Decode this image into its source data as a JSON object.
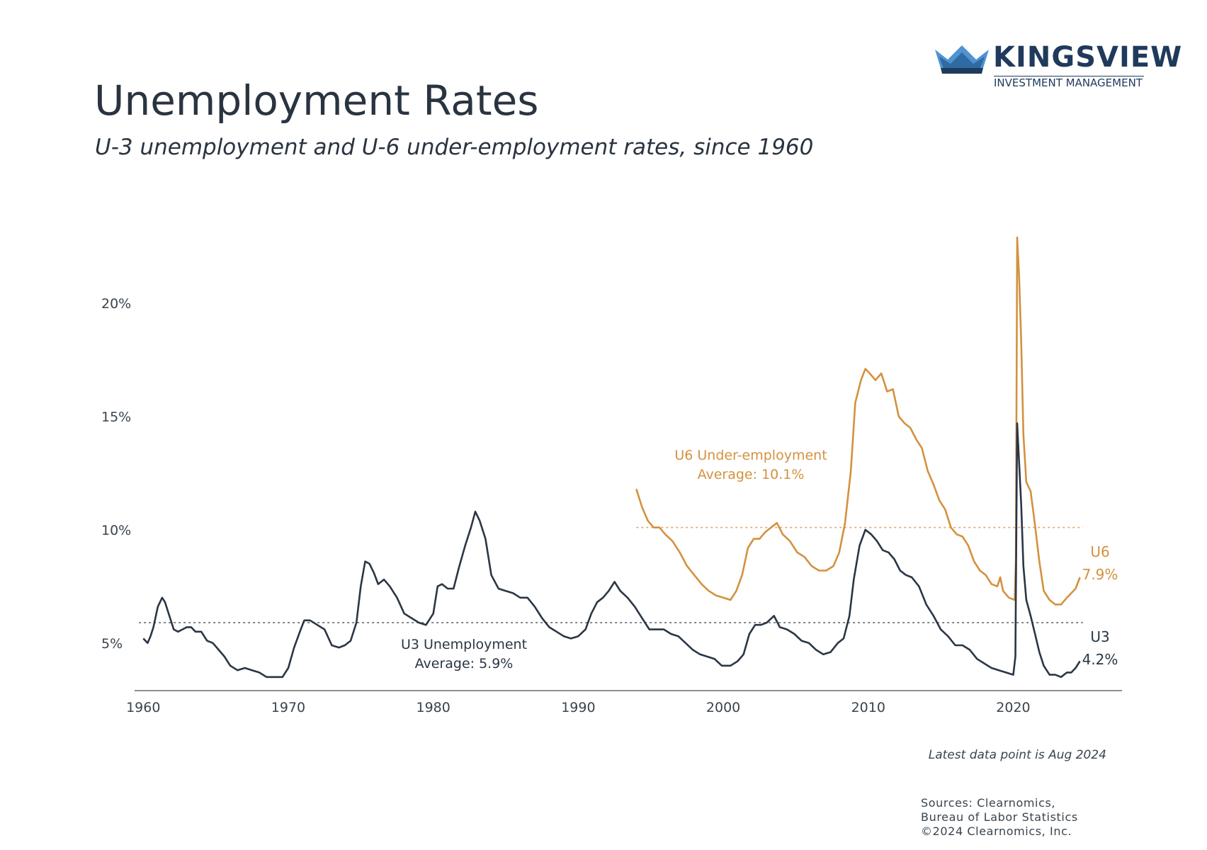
{
  "header": {
    "title": "Unemployment Rates",
    "subtitle": "U-3 unemployment and U-6 under-employment rates, since 1960"
  },
  "logo": {
    "name": "KINGSVIEW",
    "tagline": "INVESTMENT MANAGEMENT",
    "colors": {
      "dark": "#1f3a5c",
      "mid": "#2f6aa3",
      "light": "#4f93d1"
    }
  },
  "footer": {
    "note": "Latest data point is Aug 2024",
    "sources": [
      "Sources: Clearnomics,",
      "Bureau of Labor Statistics",
      "©2024 Clearnomics, Inc."
    ]
  },
  "chart_data": {
    "type": "line",
    "title": "Unemployment Rates",
    "xlabel": "",
    "ylabel": "",
    "xlim": [
      1959.4,
      2027.5
    ],
    "ylim": [
      2.9,
      24
    ],
    "xticks": [
      1960,
      1970,
      1980,
      1990,
      2000,
      2010,
      2020
    ],
    "xtick_labels": [
      "1960",
      "1970",
      "1980",
      "1990",
      "2000",
      "2010",
      "2020"
    ],
    "yticks": [
      5,
      10,
      15,
      20
    ],
    "ytick_labels": [
      "5%",
      "10%",
      "15%",
      "20%"
    ],
    "grid": false,
    "colors": {
      "u3": "#2a3645",
      "u6": "#d4913f",
      "axis": "#6b6b6b"
    },
    "series": [
      {
        "name": "U3",
        "color": "#2a3645",
        "average": 5.9,
        "annotation": [
          "U3 Unemployment",
          "Average: 5.9%"
        ],
        "end_label": [
          "U3",
          "4.2%"
        ],
        "points": [
          [
            1960.0,
            5.2
          ],
          [
            1960.3,
            5.0
          ],
          [
            1960.5,
            5.3
          ],
          [
            1960.7,
            5.7
          ],
          [
            1961.0,
            6.6
          ],
          [
            1961.3,
            7.0
          ],
          [
            1961.5,
            6.8
          ],
          [
            1961.8,
            6.2
          ],
          [
            1962.1,
            5.6
          ],
          [
            1962.4,
            5.5
          ],
          [
            1962.7,
            5.6
          ],
          [
            1963.0,
            5.7
          ],
          [
            1963.3,
            5.7
          ],
          [
            1963.6,
            5.5
          ],
          [
            1964.0,
            5.5
          ],
          [
            1964.4,
            5.1
          ],
          [
            1964.8,
            5.0
          ],
          [
            1965.2,
            4.7
          ],
          [
            1965.6,
            4.4
          ],
          [
            1966.0,
            4.0
          ],
          [
            1966.5,
            3.8
          ],
          [
            1967.0,
            3.9
          ],
          [
            1967.5,
            3.8
          ],
          [
            1968.0,
            3.7
          ],
          [
            1968.5,
            3.5
          ],
          [
            1969.0,
            3.5
          ],
          [
            1969.6,
            3.5
          ],
          [
            1970.0,
            3.9
          ],
          [
            1970.4,
            4.8
          ],
          [
            1970.8,
            5.5
          ],
          [
            1971.1,
            6.0
          ],
          [
            1971.5,
            6.0
          ],
          [
            1972.0,
            5.8
          ],
          [
            1972.5,
            5.6
          ],
          [
            1973.0,
            4.9
          ],
          [
            1973.5,
            4.8
          ],
          [
            1973.9,
            4.9
          ],
          [
            1974.3,
            5.1
          ],
          [
            1974.7,
            5.9
          ],
          [
            1975.0,
            7.5
          ],
          [
            1975.3,
            8.6
          ],
          [
            1975.6,
            8.5
          ],
          [
            1975.9,
            8.1
          ],
          [
            1976.2,
            7.6
          ],
          [
            1976.6,
            7.8
          ],
          [
            1977.0,
            7.5
          ],
          [
            1977.5,
            7.0
          ],
          [
            1978.0,
            6.3
          ],
          [
            1978.5,
            6.1
          ],
          [
            1979.0,
            5.9
          ],
          [
            1979.5,
            5.8
          ],
          [
            1980.0,
            6.3
          ],
          [
            1980.3,
            7.5
          ],
          [
            1980.6,
            7.6
          ],
          [
            1981.0,
            7.4
          ],
          [
            1981.4,
            7.4
          ],
          [
            1981.8,
            8.4
          ],
          [
            1982.2,
            9.3
          ],
          [
            1982.6,
            10.1
          ],
          [
            1982.9,
            10.8
          ],
          [
            1983.2,
            10.4
          ],
          [
            1983.6,
            9.6
          ],
          [
            1984.0,
            8.0
          ],
          [
            1984.5,
            7.4
          ],
          [
            1985.0,
            7.3
          ],
          [
            1985.5,
            7.2
          ],
          [
            1986.0,
            7.0
          ],
          [
            1986.5,
            7.0
          ],
          [
            1987.0,
            6.6
          ],
          [
            1987.5,
            6.1
          ],
          [
            1988.0,
            5.7
          ],
          [
            1988.5,
            5.5
          ],
          [
            1989.0,
            5.3
          ],
          [
            1989.5,
            5.2
          ],
          [
            1990.0,
            5.3
          ],
          [
            1990.5,
            5.6
          ],
          [
            1990.9,
            6.3
          ],
          [
            1991.3,
            6.8
          ],
          [
            1991.7,
            7.0
          ],
          [
            1992.1,
            7.3
          ],
          [
            1992.5,
            7.7
          ],
          [
            1992.9,
            7.3
          ],
          [
            1993.4,
            7.0
          ],
          [
            1993.9,
            6.6
          ],
          [
            1994.4,
            6.1
          ],
          [
            1994.9,
            5.6
          ],
          [
            1995.4,
            5.6
          ],
          [
            1995.9,
            5.6
          ],
          [
            1996.4,
            5.4
          ],
          [
            1996.9,
            5.3
          ],
          [
            1997.4,
            5.0
          ],
          [
            1997.9,
            4.7
          ],
          [
            1998.4,
            4.5
          ],
          [
            1998.9,
            4.4
          ],
          [
            1999.4,
            4.3
          ],
          [
            1999.9,
            4.0
          ],
          [
            2000.5,
            4.0
          ],
          [
            2001.0,
            4.2
          ],
          [
            2001.4,
            4.5
          ],
          [
            2001.8,
            5.4
          ],
          [
            2002.2,
            5.8
          ],
          [
            2002.6,
            5.8
          ],
          [
            2003.0,
            5.9
          ],
          [
            2003.5,
            6.2
          ],
          [
            2003.9,
            5.7
          ],
          [
            2004.4,
            5.6
          ],
          [
            2004.9,
            5.4
          ],
          [
            2005.4,
            5.1
          ],
          [
            2005.9,
            5.0
          ],
          [
            2006.4,
            4.7
          ],
          [
            2006.9,
            4.5
          ],
          [
            2007.4,
            4.6
          ],
          [
            2007.9,
            5.0
          ],
          [
            2008.3,
            5.2
          ],
          [
            2008.7,
            6.2
          ],
          [
            2009.0,
            7.8
          ],
          [
            2009.4,
            9.3
          ],
          [
            2009.8,
            10.0
          ],
          [
            2010.2,
            9.8
          ],
          [
            2010.6,
            9.5
          ],
          [
            2011.0,
            9.1
          ],
          [
            2011.4,
            9.0
          ],
          [
            2011.8,
            8.7
          ],
          [
            2012.2,
            8.2
          ],
          [
            2012.6,
            8.0
          ],
          [
            2013.0,
            7.9
          ],
          [
            2013.5,
            7.5
          ],
          [
            2014.0,
            6.7
          ],
          [
            2014.5,
            6.2
          ],
          [
            2015.0,
            5.6
          ],
          [
            2015.5,
            5.3
          ],
          [
            2016.0,
            4.9
          ],
          [
            2016.5,
            4.9
          ],
          [
            2017.0,
            4.7
          ],
          [
            2017.5,
            4.3
          ],
          [
            2018.0,
            4.1
          ],
          [
            2018.5,
            3.9
          ],
          [
            2019.0,
            3.8
          ],
          [
            2019.5,
            3.7
          ],
          [
            2020.0,
            3.6
          ],
          [
            2020.15,
            4.4
          ],
          [
            2020.27,
            14.7
          ],
          [
            2020.4,
            13.0
          ],
          [
            2020.55,
            11.1
          ],
          [
            2020.7,
            8.4
          ],
          [
            2020.9,
            6.9
          ],
          [
            2021.2,
            6.2
          ],
          [
            2021.5,
            5.4
          ],
          [
            2021.8,
            4.6
          ],
          [
            2022.1,
            4.0
          ],
          [
            2022.5,
            3.6
          ],
          [
            2022.9,
            3.6
          ],
          [
            2023.3,
            3.5
          ],
          [
            2023.7,
            3.7
          ],
          [
            2024.0,
            3.7
          ],
          [
            2024.3,
            3.9
          ],
          [
            2024.6,
            4.2
          ]
        ]
      },
      {
        "name": "U6",
        "color": "#d4913f",
        "average": 10.1,
        "annotation": [
          "U6 Under-employment",
          "Average: 10.1%"
        ],
        "end_label": [
          "U6",
          "7.9%"
        ],
        "points": [
          [
            1994.0,
            11.8
          ],
          [
            1994.4,
            11.0
          ],
          [
            1994.8,
            10.4
          ],
          [
            1995.2,
            10.1
          ],
          [
            1995.6,
            10.1
          ],
          [
            1996.0,
            9.8
          ],
          [
            1996.5,
            9.5
          ],
          [
            1997.0,
            9.0
          ],
          [
            1997.5,
            8.4
          ],
          [
            1998.0,
            8.0
          ],
          [
            1998.5,
            7.6
          ],
          [
            1999.0,
            7.3
          ],
          [
            1999.5,
            7.1
          ],
          [
            2000.0,
            7.0
          ],
          [
            2000.5,
            6.9
          ],
          [
            2000.9,
            7.3
          ],
          [
            2001.3,
            8.0
          ],
          [
            2001.7,
            9.2
          ],
          [
            2002.1,
            9.6
          ],
          [
            2002.5,
            9.6
          ],
          [
            2002.9,
            9.9
          ],
          [
            2003.3,
            10.1
          ],
          [
            2003.7,
            10.3
          ],
          [
            2004.1,
            9.8
          ],
          [
            2004.6,
            9.5
          ],
          [
            2005.1,
            9.0
          ],
          [
            2005.6,
            8.8
          ],
          [
            2006.1,
            8.4
          ],
          [
            2006.6,
            8.2
          ],
          [
            2007.1,
            8.2
          ],
          [
            2007.6,
            8.4
          ],
          [
            2008.0,
            9.0
          ],
          [
            2008.4,
            10.3
          ],
          [
            2008.8,
            12.6
          ],
          [
            2009.1,
            15.6
          ],
          [
            2009.5,
            16.6
          ],
          [
            2009.8,
            17.1
          ],
          [
            2010.1,
            16.9
          ],
          [
            2010.5,
            16.6
          ],
          [
            2010.9,
            16.9
          ],
          [
            2011.3,
            16.1
          ],
          [
            2011.7,
            16.2
          ],
          [
            2012.1,
            15.0
          ],
          [
            2012.5,
            14.7
          ],
          [
            2012.9,
            14.5
          ],
          [
            2013.3,
            14.0
          ],
          [
            2013.7,
            13.6
          ],
          [
            2014.1,
            12.6
          ],
          [
            2014.5,
            12.0
          ],
          [
            2014.9,
            11.3
          ],
          [
            2015.3,
            10.9
          ],
          [
            2015.7,
            10.1
          ],
          [
            2016.1,
            9.8
          ],
          [
            2016.5,
            9.7
          ],
          [
            2016.9,
            9.3
          ],
          [
            2017.3,
            8.6
          ],
          [
            2017.7,
            8.2
          ],
          [
            2018.1,
            8.0
          ],
          [
            2018.5,
            7.6
          ],
          [
            2018.9,
            7.5
          ],
          [
            2019.1,
            7.9
          ],
          [
            2019.3,
            7.3
          ],
          [
            2019.7,
            7.0
          ],
          [
            2020.1,
            6.9
          ],
          [
            2020.18,
            8.7
          ],
          [
            2020.27,
            22.9
          ],
          [
            2020.4,
            21.2
          ],
          [
            2020.55,
            18.3
          ],
          [
            2020.7,
            14.2
          ],
          [
            2020.9,
            12.1
          ],
          [
            2021.2,
            11.7
          ],
          [
            2021.5,
            10.2
          ],
          [
            2021.8,
            8.6
          ],
          [
            2022.1,
            7.3
          ],
          [
            2022.5,
            6.9
          ],
          [
            2022.9,
            6.7
          ],
          [
            2023.3,
            6.7
          ],
          [
            2023.7,
            7.0
          ],
          [
            2024.0,
            7.2
          ],
          [
            2024.3,
            7.4
          ],
          [
            2024.6,
            7.9
          ]
        ]
      }
    ]
  }
}
